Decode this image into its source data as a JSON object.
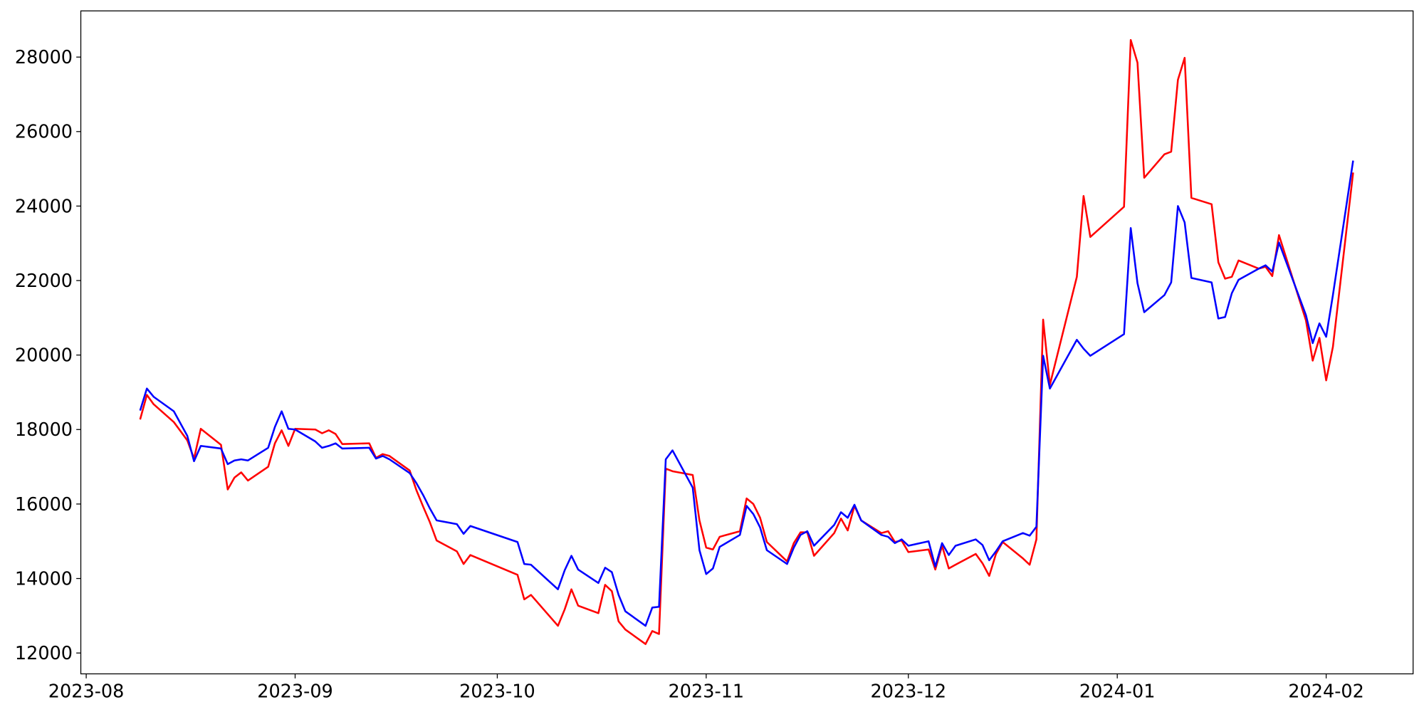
{
  "chart_data": {
    "type": "line",
    "x": [
      19578,
      19579,
      19580,
      19583,
      19585,
      19586,
      19587,
      19590,
      19591,
      19592,
      19593,
      19594,
      19597,
      19598,
      19599,
      19600,
      19601,
      19604,
      19605,
      19606,
      19607,
      19608,
      19612,
      19613,
      19614,
      19615,
      19618,
      19619,
      19620,
      19621,
      19622,
      19625,
      19626,
      19627,
      19634,
      19635,
      19636,
      19640,
      19641,
      19642,
      19643,
      19646,
      19647,
      19648,
      19649,
      19650,
      19653,
      19654,
      19655,
      19656,
      19657,
      19660,
      19661,
      19662,
      19663,
      19664,
      19667,
      19668,
      19669,
      19670,
      19671,
      19674,
      19675,
      19676,
      19677,
      19678,
      19681,
      19682,
      19683,
      19684,
      19685,
      19688,
      19689,
      19690,
      19691,
      19692,
      19695,
      19696,
      19697,
      19698,
      19699,
      19702,
      19703,
      19704,
      19705,
      19706,
      19709,
      19710,
      19711,
      19712,
      19713,
      19717,
      19718,
      19719,
      19724,
      19725,
      19726,
      19727,
      19730,
      19731,
      19732,
      19733,
      19734,
      19737,
      19738,
      19739,
      19740,
      19741,
      19744,
      19745,
      19746,
      19747,
      19751,
      19752,
      19753,
      19754,
      19755,
      19758
    ],
    "series": [
      {
        "color": "#ff0000",
        "values": [
          18270,
          18930,
          18680,
          18200,
          17710,
          17220,
          18020,
          17590,
          16390,
          16710,
          16850,
          16630,
          17000,
          17630,
          17980,
          17560,
          18020,
          18000,
          17900,
          17980,
          17880,
          17610,
          17630,
          17240,
          17340,
          17290,
          16900,
          16370,
          15930,
          15510,
          15020,
          14730,
          14390,
          14630,
          14100,
          13440,
          13560,
          12730,
          13170,
          13710,
          13270,
          13070,
          13830,
          13660,
          12850,
          12630,
          12240,
          12590,
          12510,
          16950,
          16880,
          16780,
          15560,
          14830,
          14780,
          15120,
          15270,
          16150,
          16000,
          15630,
          14980,
          14460,
          14950,
          15240,
          15240,
          14610,
          15220,
          15610,
          15290,
          15950,
          15560,
          15220,
          15270,
          14980,
          15020,
          14710,
          14780,
          14240,
          14880,
          14270,
          14370,
          14660,
          14410,
          14070,
          14660,
          14980,
          14540,
          14370,
          15050,
          20950,
          19200,
          22100,
          24270,
          23170,
          23980,
          28460,
          27850,
          24760,
          25390,
          25460,
          27390,
          27980,
          24220,
          24050,
          22490,
          22050,
          22100,
          22540,
          22320,
          22370,
          22120,
          23220,
          20930,
          19850,
          20460,
          19320,
          20220,
          24900
        ]
      },
      {
        "color": "#0000ff",
        "values": [
          18510,
          19100,
          18880,
          18490,
          17830,
          17150,
          17560,
          17490,
          17070,
          17170,
          17200,
          17170,
          17510,
          18070,
          18490,
          18020,
          18000,
          17680,
          17510,
          17560,
          17630,
          17490,
          17510,
          17220,
          17290,
          17200,
          16830,
          16560,
          16240,
          15880,
          15560,
          15460,
          15200,
          15410,
          14980,
          14390,
          14370,
          13710,
          14220,
          14610,
          14240,
          13880,
          14290,
          14170,
          13560,
          13120,
          12730,
          13220,
          13240,
          17200,
          17440,
          16440,
          14760,
          14120,
          14270,
          14850,
          15170,
          15950,
          15730,
          15370,
          14760,
          14390,
          14830,
          15170,
          15270,
          14880,
          15440,
          15780,
          15630,
          15980,
          15560,
          15170,
          15120,
          14950,
          15050,
          14880,
          15000,
          14320,
          14950,
          14630,
          14880,
          15050,
          14900,
          14490,
          14730,
          15000,
          15220,
          15150,
          15390,
          19980,
          19100,
          20410,
          20170,
          19980,
          20560,
          23410,
          21930,
          21150,
          21610,
          21950,
          24000,
          23560,
          22070,
          21950,
          20980,
          21020,
          21660,
          22020,
          22320,
          22410,
          22240,
          23020,
          21070,
          20320,
          20850,
          20490,
          21610,
          25220
        ]
      }
    ],
    "xlim": [
      19569.2,
      19766.9
    ],
    "xticks": [
      {
        "value": 19570,
        "label": "2023-08"
      },
      {
        "value": 19601,
        "label": "2023-09"
      },
      {
        "value": 19631,
        "label": "2023-10"
      },
      {
        "value": 19662,
        "label": "2023-11"
      },
      {
        "value": 19692,
        "label": "2023-12"
      },
      {
        "value": 19723,
        "label": "2024-01"
      },
      {
        "value": 19754,
        "label": "2024-02"
      }
    ],
    "ylim": [
      11440,
      29240
    ],
    "yticks": [
      12000,
      14000,
      16000,
      18000,
      20000,
      22000,
      24000,
      26000,
      28000
    ],
    "grid": false
  }
}
